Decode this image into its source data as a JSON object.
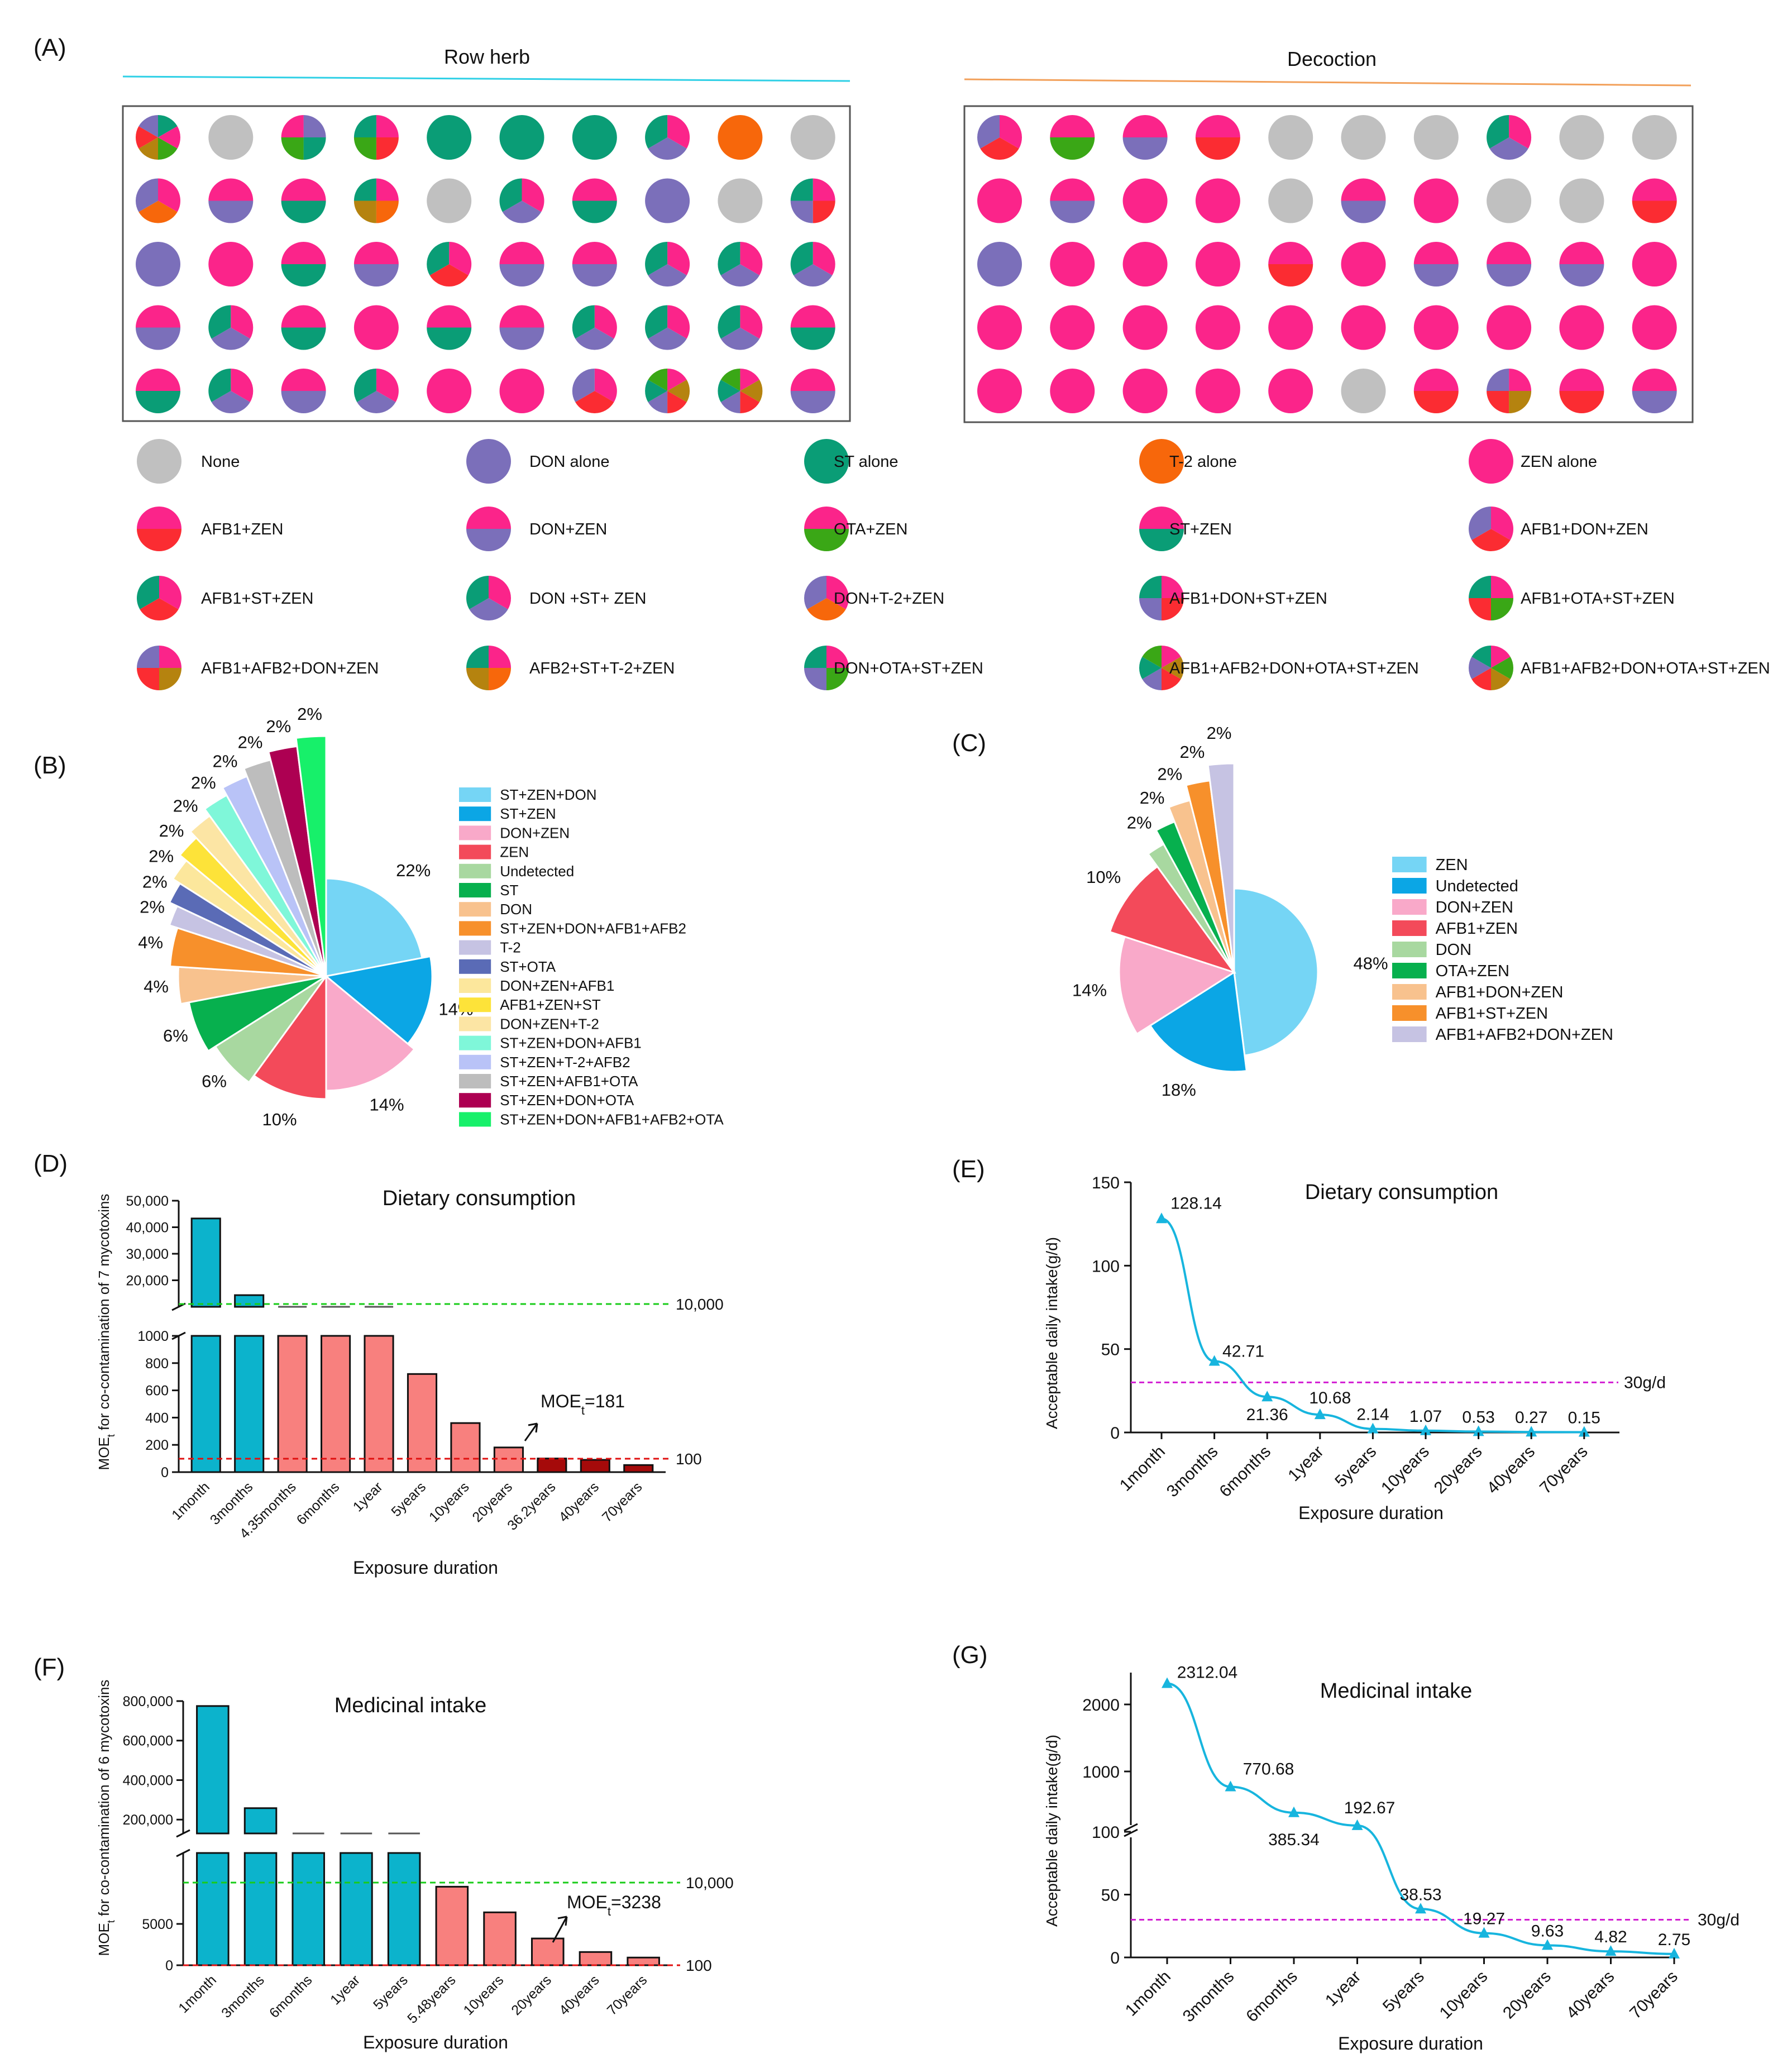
{
  "colors": {
    "none": "#c0c0c0",
    "DON": "#7b6fba",
    "ST": "#0a9d76",
    "T2": "#f7670b",
    "ZEN": "#fb248a",
    "AFB1": "#fb2c32",
    "OTA": "#3aa716",
    "AFB2": "#b5830f"
  },
  "panel_a": {
    "label": "(A)",
    "left_title": "Row herb",
    "right_title": "Decoction",
    "left_grid": [
      [
        [
          "ST",
          "ZEN",
          "OTA",
          "AFB2",
          "AFB1",
          "DON"
        ],
        [
          "none"
        ],
        [
          "DON",
          "ST",
          "OTA",
          "ZEN"
        ],
        [
          "ZEN",
          "AFB1",
          "OTA",
          "ST"
        ],
        [
          "ST"
        ],
        [
          "ST"
        ],
        [
          "ST"
        ],
        [
          "ZEN",
          "DON",
          "ST"
        ],
        [
          "T2"
        ],
        [
          "none"
        ]
      ],
      [
        [
          "ZEN",
          "T2",
          "DON"
        ],
        [
          "ZEN",
          "DON"
        ],
        [
          "ZEN",
          "ST"
        ],
        [
          "ZEN",
          "T2",
          "AFB2",
          "ST"
        ],
        [
          "none"
        ],
        [
          "ZEN",
          "DON",
          "ST"
        ],
        [
          "ZEN",
          "ST"
        ],
        [
          "DON"
        ],
        [
          "none"
        ],
        [
          "ZEN",
          "AFB1",
          "DON",
          "ST"
        ]
      ],
      [
        [
          "DON"
        ],
        [
          "ZEN"
        ],
        [
          "ZEN",
          "ST"
        ],
        [
          "ZEN",
          "DON"
        ],
        [
          "ZEN",
          "AFB1",
          "ST"
        ],
        [
          "ZEN",
          "DON"
        ],
        [
          "ZEN",
          "DON"
        ],
        [
          "ZEN",
          "DON",
          "ST"
        ],
        [
          "ZEN",
          "DON",
          "ST"
        ],
        [
          "ZEN",
          "DON",
          "ST"
        ]
      ],
      [
        [
          "ZEN",
          "DON"
        ],
        [
          "ZEN",
          "DON",
          "ST"
        ],
        [
          "ZEN",
          "ST"
        ],
        [
          "ZEN"
        ],
        [
          "ZEN",
          "ST"
        ],
        [
          "ZEN",
          "DON"
        ],
        [
          "ZEN",
          "DON",
          "ST"
        ],
        [
          "ZEN",
          "DON",
          "ST"
        ],
        [
          "ZEN",
          "DON",
          "ST"
        ],
        [
          "ZEN",
          "ST"
        ]
      ],
      [
        [
          "ZEN",
          "ST"
        ],
        [
          "ZEN",
          "DON",
          "ST"
        ],
        [
          "ZEN",
          "DON"
        ],
        [
          "ZEN",
          "DON",
          "ST"
        ],
        [
          "ZEN"
        ],
        [
          "ZEN"
        ],
        [
          "ZEN",
          "AFB1",
          "DON"
        ],
        [
          "ZEN",
          "AFB2",
          "AFB1",
          "DON",
          "ST",
          "OTA"
        ],
        [
          "ZEN",
          "AFB2",
          "AFB1",
          "DON",
          "ST",
          "OTA"
        ],
        [
          "ZEN",
          "DON"
        ]
      ]
    ],
    "right_grid": [
      [
        [
          "ZEN",
          "AFB1",
          "DON"
        ],
        [
          "ZEN",
          "OTA"
        ],
        [
          "ZEN",
          "DON"
        ],
        [
          "ZEN",
          "AFB1"
        ],
        [
          "none"
        ],
        [
          "none"
        ],
        [
          "none"
        ],
        [
          "ZEN",
          "DON",
          "ST"
        ],
        [
          "none"
        ],
        [
          "none"
        ]
      ],
      [
        [
          "ZEN"
        ],
        [
          "ZEN",
          "DON"
        ],
        [
          "ZEN"
        ],
        [
          "ZEN"
        ],
        [
          "none"
        ],
        [
          "ZEN",
          "DON"
        ],
        [
          "ZEN"
        ],
        [
          "none"
        ],
        [
          "none"
        ],
        [
          "ZEN",
          "AFB1"
        ]
      ],
      [
        [
          "DON"
        ],
        [
          "ZEN"
        ],
        [
          "ZEN"
        ],
        [
          "ZEN"
        ],
        [
          "ZEN",
          "AFB1"
        ],
        [
          "ZEN"
        ],
        [
          "ZEN",
          "DON"
        ],
        [
          "ZEN",
          "DON"
        ],
        [
          "ZEN",
          "DON"
        ],
        [
          "ZEN"
        ]
      ],
      [
        [
          "ZEN"
        ],
        [
          "ZEN"
        ],
        [
          "ZEN"
        ],
        [
          "ZEN"
        ],
        [
          "ZEN"
        ],
        [
          "ZEN"
        ],
        [
          "ZEN"
        ],
        [
          "ZEN"
        ],
        [
          "ZEN"
        ],
        [
          "ZEN"
        ]
      ],
      [
        [
          "ZEN"
        ],
        [
          "ZEN"
        ],
        [
          "ZEN"
        ],
        [
          "ZEN"
        ],
        [
          "ZEN"
        ],
        [
          "none"
        ],
        [
          "ZEN",
          "AFB1"
        ],
        [
          "ZEN",
          "AFB2",
          "AFB1",
          "DON"
        ],
        [
          "ZEN",
          "AFB1"
        ],
        [
          "ZEN",
          "DON"
        ]
      ]
    ],
    "legend": [
      {
        "label": "None",
        "parts": [
          "none"
        ]
      },
      {
        "label": "DON alone",
        "parts": [
          "DON"
        ]
      },
      {
        "label": "ST alone",
        "parts": [
          "ST"
        ]
      },
      {
        "label": "T-2 alone",
        "parts": [
          "T2"
        ]
      },
      {
        "label": "ZEN alone",
        "parts": [
          "ZEN"
        ]
      },
      {
        "label": "AFB1+ZEN",
        "parts": [
          "ZEN",
          "AFB1"
        ]
      },
      {
        "label": "DON+ZEN",
        "parts": [
          "ZEN",
          "DON"
        ]
      },
      {
        "label": "OTA+ZEN",
        "parts": [
          "ZEN",
          "OTA"
        ]
      },
      {
        "label": "ST+ZEN",
        "parts": [
          "ZEN",
          "ST"
        ]
      },
      {
        "label": "AFB1+DON+ZEN",
        "parts": [
          "ZEN",
          "AFB1",
          "DON"
        ]
      },
      {
        "label": "AFB1+ST+ZEN",
        "parts": [
          "ZEN",
          "AFB1",
          "ST"
        ]
      },
      {
        "label": "DON +ST+ ZEN",
        "parts": [
          "ZEN",
          "DON",
          "ST"
        ]
      },
      {
        "label": "DON+T-2+ZEN",
        "parts": [
          "ZEN",
          "T2",
          "DON"
        ]
      },
      {
        "label": "AFB1+DON+ST+ZEN",
        "parts": [
          "ZEN",
          "AFB1",
          "DON",
          "ST"
        ]
      },
      {
        "label": "AFB1+OTA+ST+ZEN",
        "parts": [
          "ZEN",
          "OTA",
          "AFB1",
          "ST"
        ]
      },
      {
        "label": "AFB1+AFB2+DON+ZEN",
        "parts": [
          "ZEN",
          "AFB2",
          "AFB1",
          "DON"
        ]
      },
      {
        "label": "AFB2+ST+T-2+ZEN",
        "parts": [
          "ZEN",
          "T2",
          "AFB2",
          "ST"
        ]
      },
      {
        "label": "DON+OTA+ST+ZEN",
        "parts": [
          "ZEN",
          "OTA",
          "DON",
          "ST"
        ]
      },
      {
        "label": "AFB1+AFB2+DON+OTA+ST+ZEN",
        "parts": [
          "ZEN",
          "AFB2",
          "AFB1",
          "DON",
          "ST",
          "OTA"
        ]
      },
      {
        "label": "AFB1+AFB2+DON+OTA+ST+ZEN",
        "parts": [
          "ZEN",
          "OTA",
          "AFB2",
          "AFB1",
          "DON",
          "ST"
        ]
      }
    ]
  },
  "chart_data": [
    {
      "id": "B",
      "type": "pie",
      "label": "(B)",
      "categories": [
        "ST+ZEN+DON",
        "ST+ZEN",
        "DON+ZEN",
        "ZEN",
        "Undetected",
        "ST",
        "DON",
        "ST+ZEN+DON+AFB1+AFB2",
        "T-2",
        "ST+OTA",
        "DON+ZEN+AFB1",
        "AFB1+ZEN+ST",
        "DON+ZEN+T-2",
        "ST+ZEN+DON+AFB1",
        "ST+ZEN+T-2+AFB2",
        "ST+ZEN+AFB1+OTA",
        "ST+ZEN+DON+OTA",
        "ST+ZEN+DON+AFB1+AFB2+OTA"
      ],
      "values": [
        22,
        14,
        14,
        10,
        6,
        6,
        4,
        4,
        2,
        2,
        2,
        2,
        2,
        2,
        2,
        2,
        2,
        2
      ],
      "labels": [
        "22%",
        "14%",
        "14%",
        "10%",
        "6%",
        "6%",
        "4%",
        "4%",
        "2%",
        "2%",
        "2%",
        "2%",
        "2%",
        "2%",
        "2%",
        "2%",
        "2%",
        "2%"
      ],
      "colors": [
        "#75d5f5",
        "#0ba6e5",
        "#f9a9c9",
        "#f34a5a",
        "#a8d8a0",
        "#07b04e",
        "#f8c28e",
        "#f7902b",
        "#c6c3e3",
        "#5a6bb6",
        "#fce79c",
        "#fde339",
        "#fce5a4",
        "#7ff7d9",
        "#b9c3f7",
        "#bdbdbd",
        "#ad0052",
        "#17f06a"
      ],
      "legend_position": "right"
    },
    {
      "id": "C",
      "type": "pie",
      "label": "(C)",
      "categories": [
        "ZEN",
        "Undetected",
        "DON+ZEN",
        "AFB1+ZEN",
        "DON",
        "OTA+ZEN",
        "AFB1+DON+ZEN",
        "AFB1+ST+ZEN",
        "AFB1+AFB2+DON+ZEN"
      ],
      "values": [
        48,
        18,
        14,
        10,
        2,
        2,
        2,
        2,
        2
      ],
      "labels": [
        "48%",
        "18%",
        "14%",
        "10%",
        "2%",
        "2%",
        "2%",
        "2%",
        "2%"
      ],
      "colors": [
        "#75d5f5",
        "#0ba6e5",
        "#f9a9c9",
        "#f34a5a",
        "#a8d8a0",
        "#07b04e",
        "#f8c28e",
        "#f7902b",
        "#c6c3e3"
      ],
      "legend_position": "right"
    },
    {
      "id": "D",
      "type": "bar",
      "label": "(D)",
      "title": "Dietary consumption",
      "ylabel": "MOEt for co-contamination of 7 mycotoxins",
      "xlabel": "Exposure duration",
      "categories": [
        "1month",
        "3months",
        "4.35months",
        "6months",
        "1year",
        "5years",
        "10years",
        "20years",
        "36.2years",
        "40years",
        "70years"
      ],
      "values": [
        43300,
        14400,
        10000,
        7200,
        3600,
        720,
        360,
        181,
        100,
        90,
        52
      ],
      "bar_colors": [
        "#0cb3cc",
        "#0cb3cc",
        "#f8807e",
        "#f8807e",
        "#f8807e",
        "#f8807e",
        "#f8807e",
        "#f8807e",
        "#a50a0a",
        "#a50a0a",
        "#a50a0a"
      ],
      "y_ticks_upper": [
        "20,000",
        "30,000",
        "40,000",
        "50,000"
      ],
      "y_ticks_lower": [
        "0",
        "200",
        "400",
        "600",
        "800",
        "1000"
      ],
      "reference_lines": [
        {
          "value": 10000,
          "label": "10,000",
          "color": "#19cc19"
        },
        {
          "value": 100,
          "label": "100",
          "color": "#e01010"
        }
      ],
      "annotation": {
        "prefix": "MOE",
        "sub": "t",
        "suffix": "=181"
      }
    },
    {
      "id": "E",
      "type": "line",
      "label": "(E)",
      "title": "Dietary consumption",
      "ylabel": "Acceptable daily intake(g/d)",
      "xlabel": "Exposure duration",
      "categories": [
        "1month",
        "3months",
        "6months",
        "1year",
        "5years",
        "10years",
        "20years",
        "40years",
        "70years"
      ],
      "values": [
        128.14,
        42.71,
        21.36,
        10.68,
        2.14,
        1.07,
        0.53,
        0.27,
        0.15
      ],
      "value_labels": [
        "128.14",
        "42.71",
        "21.36",
        "10.68",
        "2.14",
        "1.07",
        "0.53",
        "0.27",
        "0.15"
      ],
      "ylim": [
        0,
        150
      ],
      "y_ticks": [
        "0",
        "50",
        "100",
        "150"
      ],
      "reference_line": {
        "value": 30,
        "label": "30g/d",
        "color": "#d21ed2"
      },
      "line_color": "#17b5de"
    },
    {
      "id": "F",
      "type": "bar",
      "label": "(F)",
      "title": "Medicinal intake",
      "ylabel": "MOEt for co-contamination of 6 mycotoxins",
      "xlabel": "Exposure duration",
      "categories": [
        "1month",
        "3months",
        "6months",
        "1year",
        "5years",
        "5.48years",
        "10years",
        "20years",
        "40years",
        "70years"
      ],
      "values": [
        775000,
        258000,
        130000,
        64000,
        13000,
        9500,
        6400,
        3238,
        1600,
        930
      ],
      "bar_colors": [
        "#0cb3cc",
        "#0cb3cc",
        "#0cb3cc",
        "#0cb3cc",
        "#0cb3cc",
        "#f8807e",
        "#f8807e",
        "#f8807e",
        "#f8807e",
        "#f8807e"
      ],
      "y_ticks_upper": [
        "200,000",
        "400,000",
        "600,000",
        "800,000"
      ],
      "y_ticks_lower": [
        "0",
        "5000"
      ],
      "reference_lines": [
        {
          "value": 10000,
          "label": "10,000",
          "color": "#19cc19"
        },
        {
          "value": 100,
          "label": "100",
          "color": "#e01010"
        }
      ],
      "annotation": {
        "prefix": "MOE",
        "sub": "t",
        "suffix": "=3238"
      }
    },
    {
      "id": "G",
      "type": "line",
      "label": "(G)",
      "title": "Medicinal intake",
      "ylabel": "Acceptable daily intake(g/d)",
      "xlabel": "Exposure duration",
      "categories": [
        "1month",
        "3months",
        "6months",
        "1year",
        "5years",
        "10years",
        "20years",
        "40years",
        "70years"
      ],
      "values": [
        2312.04,
        770.68,
        385.34,
        192.67,
        38.53,
        19.27,
        9.63,
        4.82,
        2.75
      ],
      "value_labels": [
        "2312.04",
        "770.68",
        "385.34",
        "192.67",
        "38.53",
        "19.27",
        "9.63",
        "4.82",
        "2.75"
      ],
      "y_ticks_lower": [
        "0",
        "50",
        "100"
      ],
      "y_ticks_upper": [
        "1000",
        "2000"
      ],
      "reference_line": {
        "value": 30,
        "label": "30g/d",
        "color": "#d21ed2"
      },
      "line_color": "#17b5de"
    }
  ]
}
